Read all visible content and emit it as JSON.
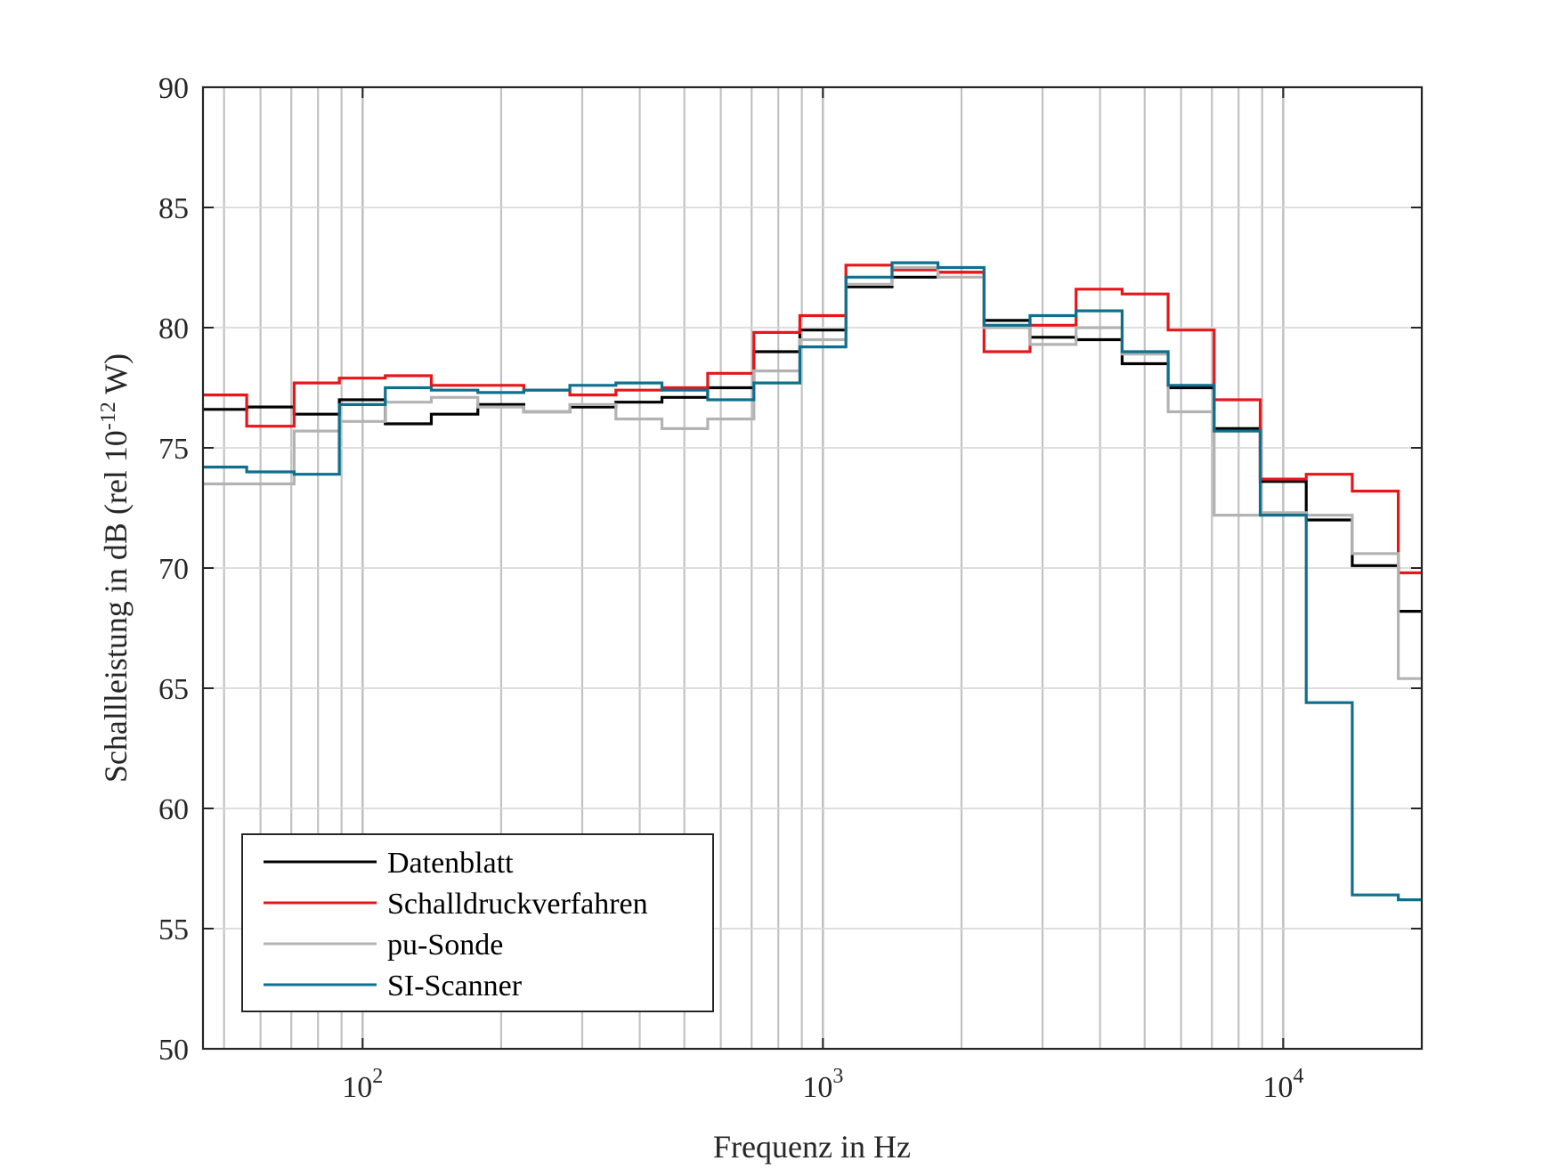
{
  "chart_data": {
    "type": "line",
    "step": true,
    "xscale": "log",
    "xlim": [
      45,
      20000
    ],
    "ylim": [
      50,
      90
    ],
    "yticks": [
      50,
      55,
      60,
      65,
      70,
      75,
      80,
      85,
      90
    ],
    "xticks": [
      {
        "value": 100,
        "base": "10",
        "exp": "2"
      },
      {
        "value": 1000,
        "base": "10",
        "exp": "3"
      },
      {
        "value": 10000,
        "base": "10",
        "exp": "4"
      }
    ],
    "xlabel": "Frequenz in Hz",
    "ylabel": {
      "main": "Schallleistung in dB (rel 10",
      "exp": "-12",
      "tail": " W)"
    },
    "grid": true,
    "legend_position": "bottom-left",
    "band_edges": [
      45,
      56,
      71,
      89,
      112,
      141,
      178,
      224,
      282,
      355,
      447,
      562,
      708,
      891,
      1122,
      1413,
      1778,
      2239,
      2818,
      3548,
      4467,
      5623,
      7079,
      8913,
      11220,
      14125,
      17783,
      20000
    ],
    "series": [
      {
        "name": "Datenblatt",
        "color": "#000000",
        "values": [
          76.6,
          76.7,
          76.4,
          77.0,
          76.0,
          76.4,
          76.8,
          76.5,
          76.7,
          76.9,
          77.1,
          77.5,
          79.0,
          79.9,
          81.7,
          82.1,
          82.3,
          80.3,
          79.6,
          79.5,
          78.5,
          77.5,
          75.8,
          73.6,
          72.0,
          70.1,
          68.2
        ]
      },
      {
        "name": "Schalldruckverfahren",
        "color": "#e8161b",
        "values": [
          77.2,
          75.9,
          77.7,
          77.9,
          78.0,
          77.6,
          77.6,
          77.4,
          77.2,
          77.4,
          77.5,
          78.1,
          79.8,
          80.5,
          82.6,
          82.4,
          82.3,
          79.0,
          80.1,
          81.6,
          81.4,
          79.9,
          77.0,
          73.7,
          73.9,
          73.2,
          69.8
        ]
      },
      {
        "name": "pu-Sonde",
        "color": "#b3b3b3",
        "values": [
          73.5,
          73.5,
          75.7,
          76.1,
          76.9,
          77.1,
          76.7,
          76.5,
          76.8,
          76.2,
          75.8,
          76.2,
          78.2,
          79.5,
          81.8,
          82.5,
          82.1,
          80.0,
          79.3,
          80.0,
          78.9,
          76.5,
          72.2,
          72.3,
          72.2,
          70.6,
          65.4
        ]
      },
      {
        "name": "SI-Scanner",
        "color": "#0e6f8e",
        "values": [
          74.2,
          74.0,
          73.9,
          76.8,
          77.5,
          77.4,
          77.3,
          77.4,
          77.6,
          77.7,
          77.4,
          77.0,
          77.7,
          79.2,
          82.1,
          82.7,
          82.5,
          80.1,
          80.5,
          80.7,
          79.0,
          77.6,
          75.7,
          72.2,
          64.4,
          56.4,
          56.2
        ]
      }
    ]
  }
}
